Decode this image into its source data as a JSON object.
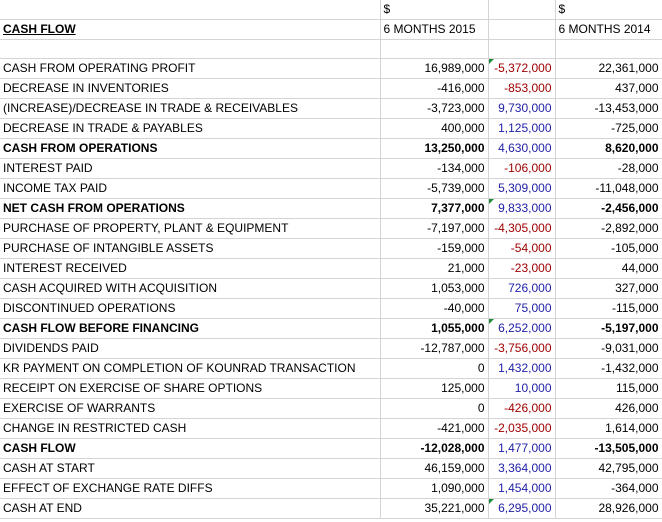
{
  "header": {
    "currency_2015": "$",
    "currency_2014": "$",
    "title": "CASH FLOW",
    "period_2015": "6 MONTHS 2015",
    "period_2014": "6 MONTHS 2014"
  },
  "rows": [
    {
      "label": "CASH FROM OPERATING PROFIT",
      "v2015": "16,989,000",
      "diff": "-5,372,000",
      "v2014": "22,361,000",
      "bold": false,
      "diff_sign": "neg",
      "flag": true
    },
    {
      "label": "DECREASE IN INVENTORIES",
      "v2015": "-416,000",
      "diff": "-853,000",
      "v2014": "437,000",
      "bold": false,
      "diff_sign": "neg",
      "flag": false
    },
    {
      "label": "(INCREASE)/DECREASE IN TRADE & RECEIVABLES",
      "v2015": "-3,723,000",
      "diff": "9,730,000",
      "v2014": "-13,453,000",
      "bold": false,
      "diff_sign": "pos",
      "flag": false
    },
    {
      "label": "DECREASE IN TRADE & PAYABLES",
      "v2015": "400,000",
      "diff": "1,125,000",
      "v2014": "-725,000",
      "bold": false,
      "diff_sign": "pos",
      "flag": false
    },
    {
      "label": "CASH FROM OPERATIONS",
      "v2015": "13,250,000",
      "diff": "4,630,000",
      "v2014": "8,620,000",
      "bold": true,
      "diff_sign": "pos",
      "flag": false
    },
    {
      "label": "INTEREST PAID",
      "v2015": "-134,000",
      "diff": "-106,000",
      "v2014": "-28,000",
      "bold": false,
      "diff_sign": "neg",
      "flag": false
    },
    {
      "label": "INCOME TAX PAID",
      "v2015": "-5,739,000",
      "diff": "5,309,000",
      "v2014": "-11,048,000",
      "bold": false,
      "diff_sign": "pos",
      "flag": false
    },
    {
      "label": "NET CASH FROM OPERATIONS",
      "v2015": "7,377,000",
      "diff": "9,833,000",
      "v2014": "-2,456,000",
      "bold": true,
      "diff_sign": "pos",
      "flag": true
    },
    {
      "label": "PURCHASE OF PROPERTY, PLANT & EQUIPMENT",
      "v2015": "-7,197,000",
      "diff": "-4,305,000",
      "v2014": "-2,892,000",
      "bold": false,
      "diff_sign": "neg",
      "flag": false
    },
    {
      "label": "PURCHASE OF INTANGIBLE ASSETS",
      "v2015": "-159,000",
      "diff": "-54,000",
      "v2014": "-105,000",
      "bold": false,
      "diff_sign": "neg",
      "flag": false
    },
    {
      "label": "INTEREST RECEIVED",
      "v2015": "21,000",
      "diff": "-23,000",
      "v2014": "44,000",
      "bold": false,
      "diff_sign": "neg",
      "flag": false
    },
    {
      "label": "CASH ACQUIRED WITH ACQUISITION",
      "v2015": "1,053,000",
      "diff": "726,000",
      "v2014": "327,000",
      "bold": false,
      "diff_sign": "pos",
      "flag": false
    },
    {
      "label": "DISCONTINUED OPERATIONS",
      "v2015": "-40,000",
      "diff": "75,000",
      "v2014": "-115,000",
      "bold": false,
      "diff_sign": "pos",
      "flag": false
    },
    {
      "label": "CASH FLOW BEFORE FINANCING",
      "v2015": "1,055,000",
      "diff": "6,252,000",
      "v2014": "-5,197,000",
      "bold": true,
      "diff_sign": "pos",
      "flag": true
    },
    {
      "label": "DIVIDENDS PAID",
      "v2015": "-12,787,000",
      "diff": "-3,756,000",
      "v2014": "-9,031,000",
      "bold": false,
      "diff_sign": "neg",
      "flag": false
    },
    {
      "label": "KR PAYMENT ON COMPLETION OF KOUNRAD TRANSACTION",
      "v2015": "0",
      "diff": "1,432,000",
      "v2014": "-1,432,000",
      "bold": false,
      "diff_sign": "pos",
      "flag": false
    },
    {
      "label": "RECEIPT ON EXERCISE OF SHARE OPTIONS",
      "v2015": "125,000",
      "diff": "10,000",
      "v2014": "115,000",
      "bold": false,
      "diff_sign": "pos",
      "flag": false
    },
    {
      "label": "EXERCISE OF WARRANTS",
      "v2015": "0",
      "diff": "-426,000",
      "v2014": "426,000",
      "bold": false,
      "diff_sign": "neg",
      "flag": false
    },
    {
      "label": "CHANGE IN RESTRICTED CASH",
      "v2015": "-421,000",
      "diff": "-2,035,000",
      "v2014": "1,614,000",
      "bold": false,
      "diff_sign": "neg",
      "flag": false
    },
    {
      "label": "CASH FLOW",
      "v2015": "-12,028,000",
      "diff": "1,477,000",
      "v2014": "-13,505,000",
      "bold": true,
      "diff_sign": "pos",
      "flag": false
    },
    {
      "label": "CASH AT START",
      "v2015": "46,159,000",
      "diff": "3,364,000",
      "v2014": "42,795,000",
      "bold": false,
      "diff_sign": "pos",
      "flag": false
    },
    {
      "label": "EFFECT OF EXCHANGE RATE DIFFS",
      "v2015": "1,090,000",
      "diff": "1,454,000",
      "v2014": "-364,000",
      "bold": false,
      "diff_sign": "pos",
      "flag": false
    },
    {
      "label": "CASH AT END",
      "v2015": "35,221,000",
      "diff": "6,295,000",
      "v2014": "28,926,000",
      "bold": false,
      "diff_sign": "pos",
      "flag": true
    }
  ],
  "colors": {
    "positive_diff": "#1f1fa6",
    "negative_diff": "#a00000",
    "comment_flag": "#1e8a3a",
    "gridline": "#d4d4d4"
  }
}
